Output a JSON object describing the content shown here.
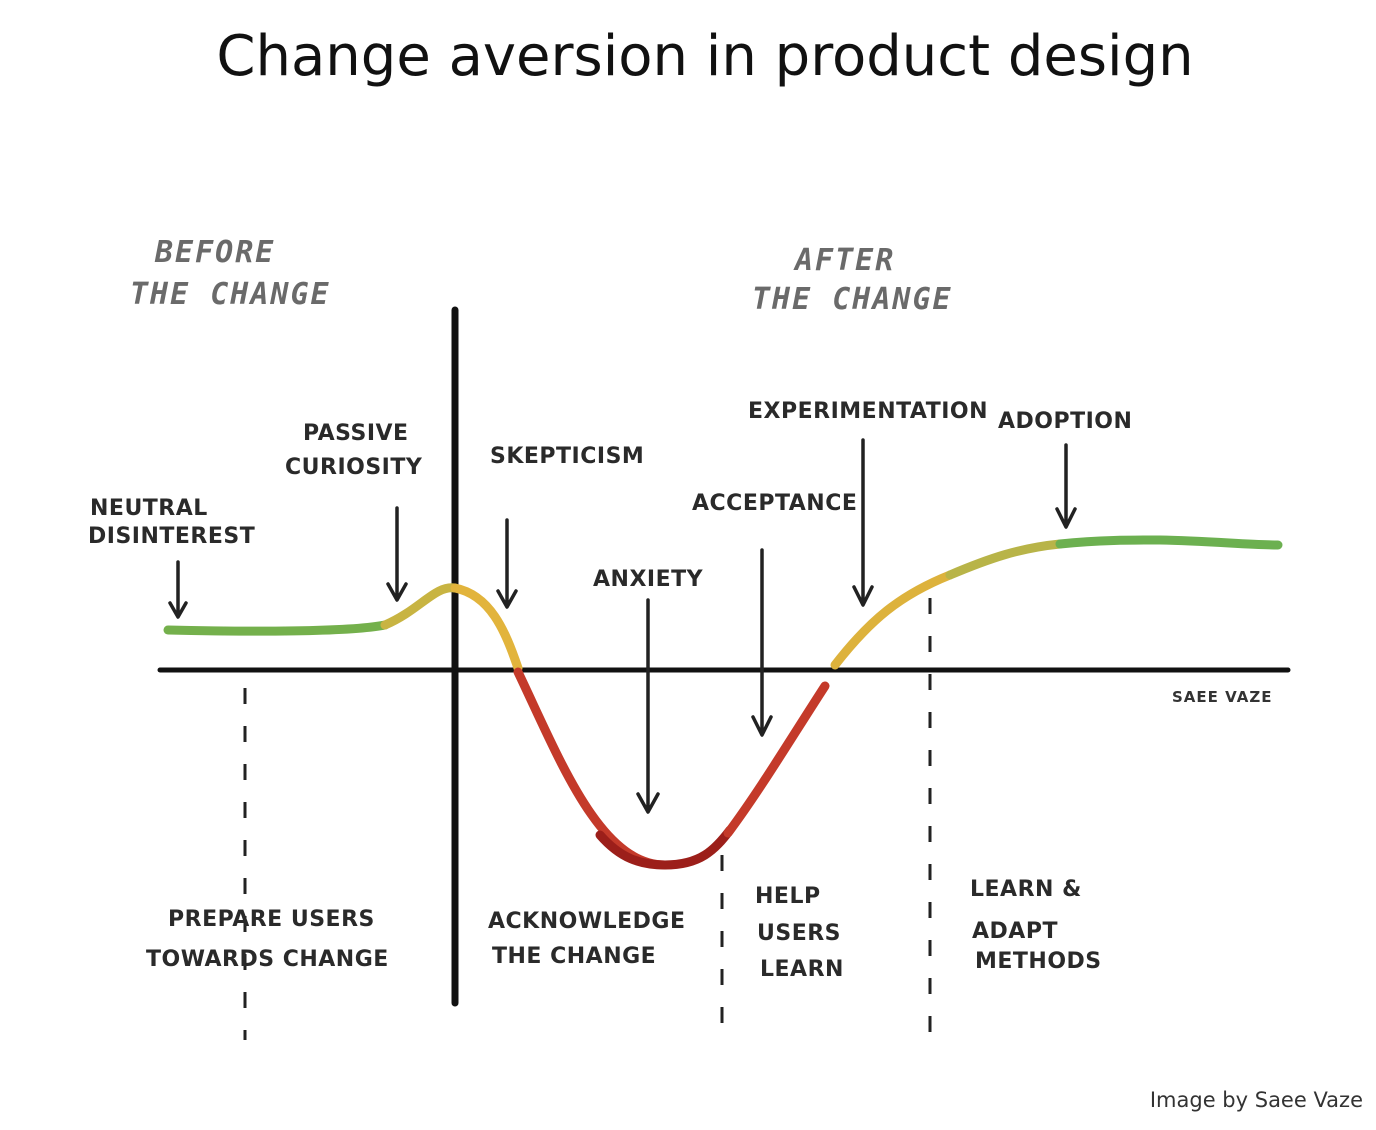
{
  "title": "Change aversion in product design",
  "phases": [
    {
      "lines": [
        "BEFORE",
        "THE CHANGE"
      ]
    },
    {
      "lines": [
        "AFTER",
        "THE CHANGE"
      ]
    }
  ],
  "stages": [
    {
      "lines": [
        "NEUTRAL",
        "DISINTEREST"
      ]
    },
    {
      "lines": [
        "PASSIVE",
        "CURIOSITY"
      ]
    },
    {
      "lines": [
        "SKEPTICISM"
      ]
    },
    {
      "lines": [
        "ANXIETY"
      ]
    },
    {
      "lines": [
        "ACCEPTANCE"
      ]
    },
    {
      "lines": [
        "EXPERIMENTATION"
      ]
    },
    {
      "lines": [
        "ADOPTION"
      ]
    }
  ],
  "actions": [
    {
      "lines": [
        "PREPARE USERS",
        "TOWARDS CHANGE"
      ]
    },
    {
      "lines": [
        "ACKNOWLEDGE",
        "THE CHANGE"
      ]
    },
    {
      "lines": [
        "HELP",
        "USERS",
        "LEARN"
      ]
    },
    {
      "lines": [
        "LEARN &",
        "ADAPT",
        "METHODS"
      ]
    }
  ],
  "signature": "SAEE VAZE",
  "credit": "Image by Saee Vaze"
}
